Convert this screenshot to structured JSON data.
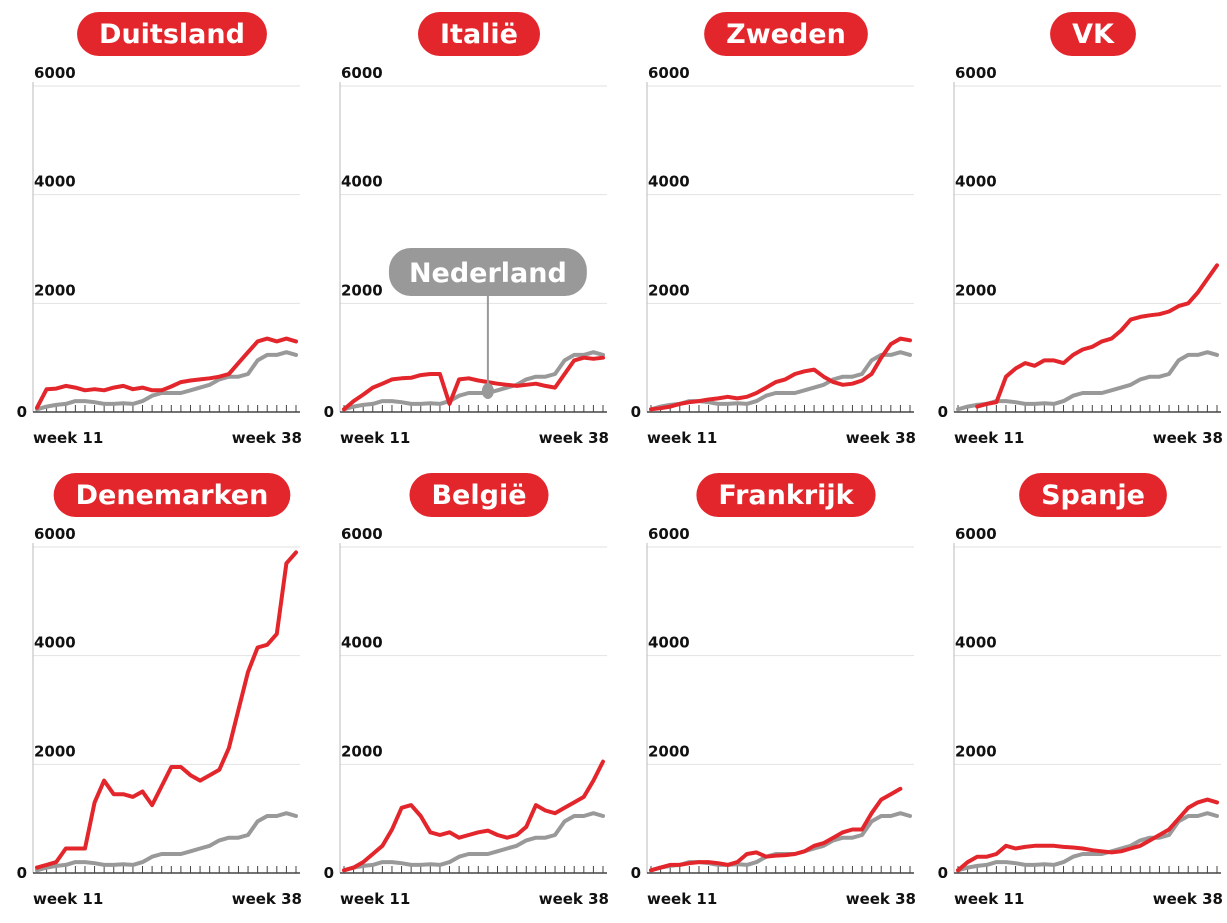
{
  "chart_data": [
    {
      "type": "line",
      "title": "Duitsland",
      "categories": [
        "week 11",
        null,
        null,
        null,
        null,
        null,
        null,
        null,
        null,
        null,
        null,
        null,
        null,
        null,
        null,
        null,
        null,
        null,
        null,
        null,
        null,
        null,
        null,
        null,
        null,
        null,
        null,
        "week 38"
      ],
      "ylim": [
        0,
        6000
      ],
      "yticks": [
        0,
        2000,
        4000,
        6000
      ],
      "grid": true,
      "series": [
        {
          "color": "#999999",
          "values": [
            50,
            100,
            130,
            150,
            200,
            200,
            180,
            150,
            150,
            160,
            150,
            200,
            300,
            350,
            350,
            350,
            400,
            450,
            500,
            600,
            650,
            650,
            700,
            950,
            1050,
            1050,
            1100,
            1050
          ]
        },
        {
          "color": "#e3262b",
          "values": [
            80,
            420,
            430,
            480,
            450,
            400,
            420,
            400,
            450,
            480,
            420,
            450,
            400,
            400,
            470,
            550,
            580,
            600,
            620,
            650,
            700,
            900,
            1100,
            1300,
            1350,
            1300,
            1350,
            1300
          ]
        }
      ]
    },
    {
      "type": "line",
      "title": "Italië",
      "annotation": "Nederland",
      "categories": [
        "week 11",
        null,
        null,
        null,
        null,
        null,
        null,
        null,
        null,
        null,
        null,
        null,
        null,
        null,
        null,
        null,
        null,
        null,
        null,
        null,
        null,
        null,
        null,
        null,
        null,
        null,
        null,
        "week 38"
      ],
      "ylim": [
        0,
        6000
      ],
      "yticks": [
        0,
        2000,
        4000,
        6000
      ],
      "grid": true,
      "series": [
        {
          "color": "#999999",
          "values": [
            50,
            100,
            130,
            150,
            200,
            200,
            180,
            150,
            150,
            160,
            150,
            200,
            300,
            350,
            350,
            350,
            400,
            450,
            500,
            600,
            650,
            650,
            700,
            950,
            1050,
            1050,
            1100,
            1050
          ]
        },
        {
          "color": "#e3262b",
          "values": [
            50,
            200,
            320,
            450,
            520,
            600,
            620,
            630,
            680,
            700,
            700,
            150,
            600,
            620,
            580,
            550,
            520,
            500,
            480,
            500,
            520,
            480,
            450,
            700,
            950,
            1000,
            980,
            1000
          ]
        }
      ]
    },
    {
      "type": "line",
      "title": "Zweden",
      "categories": [
        "week 11",
        null,
        null,
        null,
        null,
        null,
        null,
        null,
        null,
        null,
        null,
        null,
        null,
        null,
        null,
        null,
        null,
        null,
        null,
        null,
        null,
        null,
        null,
        null,
        null,
        null,
        null,
        "week 38"
      ],
      "ylim": [
        0,
        6000
      ],
      "yticks": [
        0,
        2000,
        4000,
        6000
      ],
      "grid": true,
      "series": [
        {
          "color": "#999999",
          "values": [
            50,
            100,
            130,
            150,
            200,
            200,
            180,
            150,
            150,
            160,
            150,
            200,
            300,
            350,
            350,
            350,
            400,
            450,
            500,
            600,
            650,
            650,
            700,
            950,
            1050,
            1050,
            1100,
            1050
          ]
        },
        {
          "color": "#e3262b",
          "values": [
            50,
            70,
            100,
            150,
            180,
            200,
            230,
            250,
            280,
            250,
            280,
            350,
            450,
            550,
            600,
            700,
            750,
            780,
            650,
            550,
            500,
            520,
            580,
            700,
            1000,
            1250,
            1350,
            1320
          ]
        }
      ]
    },
    {
      "type": "line",
      "title": "VK",
      "categories": [
        "week 11",
        null,
        null,
        null,
        null,
        null,
        null,
        null,
        null,
        null,
        null,
        null,
        null,
        null,
        null,
        null,
        null,
        null,
        null,
        null,
        null,
        null,
        null,
        null,
        null,
        null,
        null,
        "week 38"
      ],
      "ylim": [
        0,
        6000
      ],
      "yticks": [
        0,
        2000,
        4000,
        6000
      ],
      "grid": true,
      "series": [
        {
          "color": "#999999",
          "values": [
            50,
            100,
            130,
            150,
            200,
            200,
            180,
            150,
            150,
            160,
            150,
            200,
            300,
            350,
            350,
            350,
            400,
            450,
            500,
            600,
            650,
            650,
            700,
            950,
            1050,
            1050,
            1100,
            1050
          ]
        },
        {
          "color": "#e3262b",
          "values": [
            null,
            null,
            100,
            150,
            180,
            650,
            800,
            900,
            850,
            950,
            950,
            900,
            1050,
            1150,
            1200,
            1300,
            1350,
            1500,
            1700,
            1750,
            1780,
            1800,
            1850,
            1950,
            2000,
            2200,
            2450,
            2700
          ]
        }
      ]
    },
    {
      "type": "line",
      "title": "Denemarken",
      "categories": [
        "week 11",
        null,
        null,
        null,
        null,
        null,
        null,
        null,
        null,
        null,
        null,
        null,
        null,
        null,
        null,
        null,
        null,
        null,
        null,
        null,
        null,
        null,
        null,
        null,
        null,
        null,
        null,
        "week 38"
      ],
      "ylim": [
        0,
        6000
      ],
      "yticks": [
        0,
        2000,
        4000,
        6000
      ],
      "grid": true,
      "series": [
        {
          "color": "#999999",
          "values": [
            50,
            100,
            130,
            150,
            200,
            200,
            180,
            150,
            150,
            160,
            150,
            200,
            300,
            350,
            350,
            350,
            400,
            450,
            500,
            600,
            650,
            650,
            700,
            950,
            1050,
            1050,
            1100,
            1050
          ]
        },
        {
          "color": "#e3262b",
          "values": [
            100,
            150,
            200,
            450,
            450,
            450,
            1300,
            1700,
            1450,
            1450,
            1400,
            1500,
            1250,
            1600,
            1950,
            1950,
            1800,
            1700,
            1800,
            1900,
            2300,
            3000,
            3700,
            4150,
            4200,
            4400,
            5700,
            5900
          ]
        }
      ]
    },
    {
      "type": "line",
      "title": "België",
      "categories": [
        "week 11",
        null,
        null,
        null,
        null,
        null,
        null,
        null,
        null,
        null,
        null,
        null,
        null,
        null,
        null,
        null,
        null,
        null,
        null,
        null,
        null,
        null,
        null,
        null,
        null,
        null,
        null,
        "week 38"
      ],
      "ylim": [
        0,
        6000
      ],
      "yticks": [
        0,
        2000,
        4000,
        6000
      ],
      "grid": true,
      "series": [
        {
          "color": "#999999",
          "values": [
            50,
            100,
            130,
            150,
            200,
            200,
            180,
            150,
            150,
            160,
            150,
            200,
            300,
            350,
            350,
            350,
            400,
            450,
            500,
            600,
            650,
            650,
            700,
            950,
            1050,
            1050,
            1100,
            1050
          ]
        },
        {
          "color": "#e3262b",
          "values": [
            50,
            100,
            200,
            350,
            500,
            800,
            1200,
            1250,
            1050,
            750,
            700,
            750,
            650,
            700,
            750,
            780,
            700,
            650,
            700,
            850,
            1250,
            1150,
            1100,
            1200,
            1300,
            1400,
            1700,
            2050
          ]
        }
      ]
    },
    {
      "type": "line",
      "title": "Frankrijk",
      "categories": [
        "week 11",
        null,
        null,
        null,
        null,
        null,
        null,
        null,
        null,
        null,
        null,
        null,
        null,
        null,
        null,
        null,
        null,
        null,
        null,
        null,
        null,
        null,
        null,
        null,
        null,
        null,
        null,
        "week 38"
      ],
      "ylim": [
        0,
        6000
      ],
      "yticks": [
        0,
        2000,
        4000,
        6000
      ],
      "grid": true,
      "series": [
        {
          "color": "#999999",
          "values": [
            50,
            100,
            130,
            150,
            200,
            200,
            180,
            150,
            150,
            160,
            150,
            200,
            300,
            350,
            350,
            350,
            400,
            450,
            500,
            600,
            650,
            650,
            700,
            950,
            1050,
            1050,
            1100,
            1050
          ]
        },
        {
          "color": "#e3262b",
          "values": [
            50,
            100,
            150,
            150,
            180,
            200,
            200,
            180,
            150,
            200,
            350,
            380,
            300,
            320,
            330,
            350,
            400,
            500,
            550,
            650,
            750,
            800,
            800,
            1100,
            1350,
            1450,
            1550,
            null
          ]
        }
      ]
    },
    {
      "type": "line",
      "title": "Spanje",
      "categories": [
        "week 11",
        null,
        null,
        null,
        null,
        null,
        null,
        null,
        null,
        null,
        null,
        null,
        null,
        null,
        null,
        null,
        null,
        null,
        null,
        null,
        null,
        null,
        null,
        null,
        null,
        null,
        null,
        "week 38"
      ],
      "ylim": [
        0,
        6000
      ],
      "yticks": [
        0,
        2000,
        4000,
        6000
      ],
      "grid": true,
      "series": [
        {
          "color": "#999999",
          "values": [
            50,
            100,
            130,
            150,
            200,
            200,
            180,
            150,
            150,
            160,
            150,
            200,
            300,
            350,
            350,
            350,
            400,
            450,
            500,
            600,
            650,
            650,
            700,
            950,
            1050,
            1050,
            1100,
            1050
          ]
        },
        {
          "color": "#e3262b",
          "values": [
            50,
            200,
            300,
            300,
            350,
            500,
            450,
            480,
            500,
            500,
            500,
            480,
            470,
            450,
            420,
            400,
            380,
            400,
            450,
            500,
            600,
            700,
            800,
            1000,
            1200,
            1300,
            1350,
            1300
          ]
        }
      ]
    }
  ]
}
